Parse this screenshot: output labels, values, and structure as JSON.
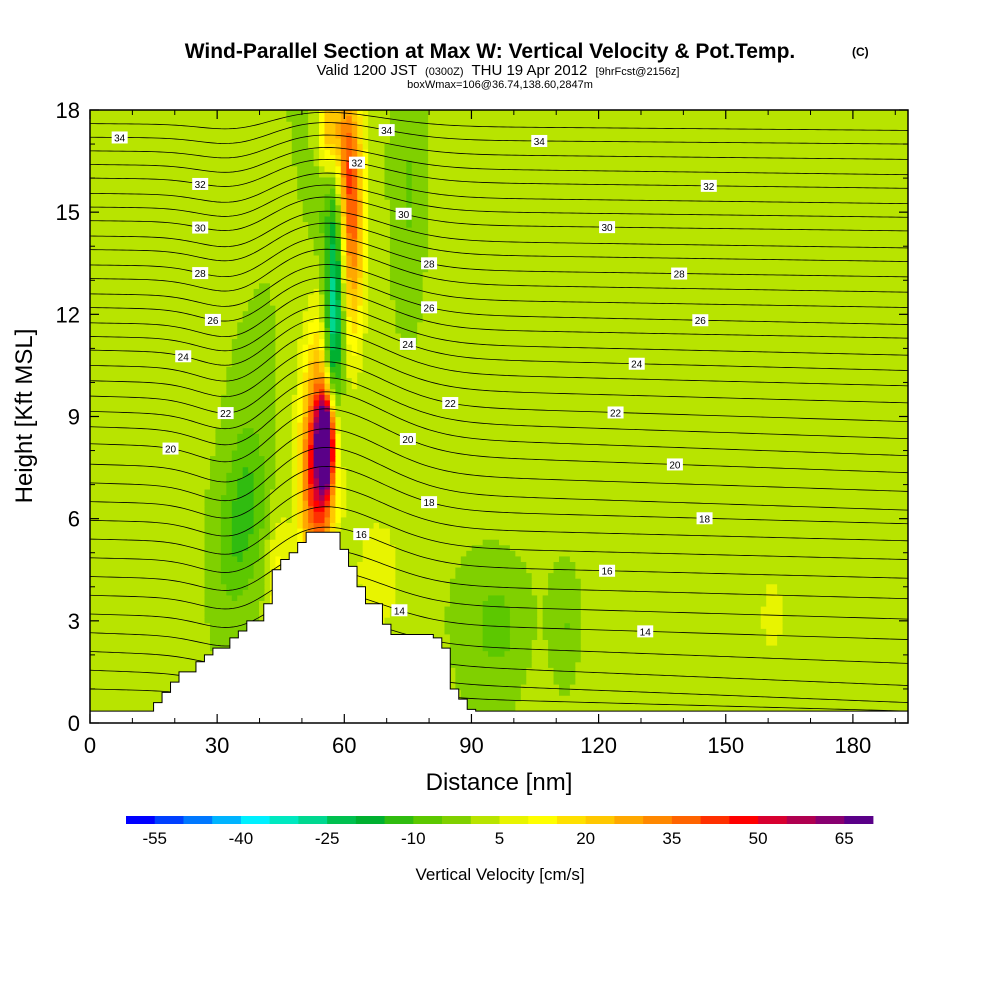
{
  "header": {
    "title": "Wind-Parallel Section at Max W: Vertical Velocity & Pot.Temp.",
    "copyright": "(C)",
    "valid_prefix": "Valid 1200 JST",
    "valid_utc": "(0300Z)",
    "valid_date": "THU 19 Apr 2012",
    "forecast_tag": "[9hrFcst@2156z]",
    "box_info": "boxWmax=106@36.74,138.60,2847m"
  },
  "chart_data": {
    "type": "heatmap",
    "title": "Wind-Parallel Section at Max W: Vertical Velocity & Pot.Temp.",
    "xlabel": "Distance [nm]",
    "ylabel": "Height [Kft MSL]",
    "xlim": [
      0,
      193
    ],
    "ylim": [
      0,
      18
    ],
    "xticks": [
      "0",
      "30",
      "60",
      "90",
      "120",
      "150",
      "180"
    ],
    "yticks": [
      "0",
      "3",
      "6",
      "9",
      "12",
      "15",
      "18"
    ],
    "background_w_cms": 0,
    "colors": {
      "background_green": "#7ed400",
      "colorbar": [
        "#0000ff",
        "#0040ff",
        "#0078ff",
        "#00b4ff",
        "#00f0ff",
        "#00e8c0",
        "#00d890",
        "#00c050",
        "#00b030",
        "#30bc10",
        "#5cc800",
        "#80d000",
        "#b8e400",
        "#e8f400",
        "#ffff00",
        "#ffe000",
        "#ffc800",
        "#ffa800",
        "#ff8800",
        "#ff6400",
        "#ff3000",
        "#ff0000",
        "#d80030",
        "#b00050",
        "#880070",
        "#5a0088"
      ]
    },
    "colorbar": {
      "label": "Vertical Velocity [cm/s]",
      "tick_labels": [
        "-55",
        "-40",
        "-25",
        "-10",
        "5",
        "20",
        "35",
        "50",
        "65"
      ]
    },
    "terrain_profile": {
      "x_nm": [
        0,
        11,
        13,
        15,
        17,
        19,
        21,
        23,
        25,
        27,
        29,
        31,
        33,
        35,
        37,
        39,
        41,
        43,
        45,
        47,
        49,
        51,
        53,
        55,
        57,
        59,
        61,
        63,
        65,
        67,
        69,
        71,
        73,
        75,
        77,
        79,
        81,
        83,
        85,
        87,
        89,
        91,
        193
      ],
      "height_kft": [
        0.35,
        0.35,
        0.35,
        0.6,
        0.9,
        1.2,
        1.5,
        1.5,
        1.8,
        2.0,
        2.2,
        2.2,
        2.5,
        2.7,
        3.0,
        3.0,
        3.5,
        4.5,
        4.8,
        5.0,
        5.3,
        5.6,
        5.6,
        5.6,
        5.6,
        5.1,
        4.6,
        4.0,
        3.5,
        3.5,
        2.9,
        2.6,
        2.6,
        2.6,
        2.6,
        2.6,
        2.5,
        2.2,
        1.0,
        0.7,
        0.4,
        0.35,
        0.35
      ]
    },
    "w_features": [
      {
        "x": 55.5,
        "y": 8.2,
        "sx": 1.3,
        "sy": 0.9,
        "w": 72
      },
      {
        "x": 54.5,
        "y": 8.0,
        "sx": 2.8,
        "sy": 2.6,
        "w": 40
      },
      {
        "x": 52.0,
        "y": 7.0,
        "sx": 2.5,
        "sy": 2.0,
        "w": 18
      },
      {
        "x": 58.0,
        "y": 14.2,
        "sx": 1.6,
        "sy": 3.2,
        "w": -28
      },
      {
        "x": 57.0,
        "y": 11.0,
        "sx": 1.5,
        "sy": 1.6,
        "w": -20
      },
      {
        "x": 60.5,
        "y": 16.5,
        "sx": 2.6,
        "sy": 1.9,
        "w": 36
      },
      {
        "x": 62.0,
        "y": 13.5,
        "sx": 2.0,
        "sy": 2.0,
        "w": 24
      },
      {
        "x": 56.5,
        "y": 17.5,
        "sx": 2.0,
        "sy": 1.0,
        "w": 30
      },
      {
        "x": 37.5,
        "y": 6.8,
        "sx": 3.0,
        "sy": 1.6,
        "w": -10
      },
      {
        "x": 33.5,
        "y": 5.2,
        "sx": 3.2,
        "sy": 1.4,
        "w": -8
      },
      {
        "x": 44.5,
        "y": 3.5,
        "sx": 1.8,
        "sy": 1.8,
        "w": 14
      },
      {
        "x": 68.0,
        "y": 4.4,
        "sx": 4.0,
        "sy": 1.3,
        "w": 9
      },
      {
        "x": 55.0,
        "y": 16.5,
        "sx": 2.0,
        "sy": 2.5,
        "w": -7
      },
      {
        "x": 75.5,
        "y": 15.5,
        "sx": 2.0,
        "sy": 2.0,
        "w": -6
      },
      {
        "x": 96.0,
        "y": 2.8,
        "sx": 5.0,
        "sy": 1.3,
        "w": -8
      },
      {
        "x": 112.0,
        "y": 2.8,
        "sx": 2.5,
        "sy": 1.2,
        "w": -7
      },
      {
        "x": 105.0,
        "y": 11.0,
        "sx": 15.0,
        "sy": 4.5,
        "w": 3
      },
      {
        "x": 125.0,
        "y": 9.5,
        "sx": 8.0,
        "sy": 3.0,
        "w": 3
      },
      {
        "x": 175.0,
        "y": 11.0,
        "sx": 6.0,
        "sy": 2.5,
        "w": 3
      },
      {
        "x": 161.0,
        "y": 3.2,
        "sx": 2.2,
        "sy": 1.0,
        "w": 8
      },
      {
        "x": 120.0,
        "y": 1.5,
        "sx": 20.0,
        "sy": 1.5,
        "w": 2
      },
      {
        "x": 20.0,
        "y": 9.0,
        "sx": 6.0,
        "sy": 5.0,
        "w": 2
      },
      {
        "x": 13.0,
        "y": 14.0,
        "sx": 4.0,
        "sy": 4.0,
        "w": 2
      }
    ],
    "theta_contours": [
      {
        "left": 17.6,
        "right": 17.4,
        "amp": 0.4
      },
      {
        "left": 17.2,
        "right": 17.0,
        "amp": 0.5,
        "label": "34",
        "label_x": [
          7,
          70,
          106
        ]
      },
      {
        "left": 16.8,
        "right": 16.55,
        "amp": 0.55
      },
      {
        "left": 16.4,
        "right": 16.1,
        "amp": 0.6
      },
      {
        "left": 16.0,
        "right": 15.7,
        "amp": 0.65,
        "label": "32",
        "label_x": [
          26,
          63,
          146
        ]
      },
      {
        "left": 15.55,
        "right": 15.25,
        "amp": 0.7
      },
      {
        "left": 15.15,
        "right": 14.85,
        "amp": 0.75
      },
      {
        "left": 14.75,
        "right": 14.45,
        "amp": 0.8,
        "label": "30",
        "label_x": [
          26,
          74,
          122
        ]
      },
      {
        "left": 14.3,
        "right": 13.95,
        "amp": 0.85
      },
      {
        "left": 13.9,
        "right": 13.55,
        "amp": 0.9
      },
      {
        "left": 13.45,
        "right": 13.1,
        "amp": 0.95,
        "label": "28",
        "label_x": [
          26,
          80,
          139
        ]
      },
      {
        "left": 13.05,
        "right": 12.65,
        "amp": 1.0
      },
      {
        "left": 12.6,
        "right": 12.2,
        "amp": 1.0
      },
      {
        "left": 12.2,
        "right": 11.7,
        "amp": 1.05,
        "label": "26",
        "label_x": [
          29,
          80,
          144
        ]
      },
      {
        "left": 11.75,
        "right": 11.3,
        "amp": 1.1
      },
      {
        "left": 11.35,
        "right": 10.8,
        "amp": 1.1
      },
      {
        "left": 10.95,
        "right": 10.35,
        "amp": 1.15,
        "label": "24",
        "label_x": [
          22,
          75,
          129
        ]
      },
      {
        "left": 10.5,
        "right": 9.9,
        "amp": 1.2
      },
      {
        "left": 10.05,
        "right": 9.4,
        "amp": 1.2
      },
      {
        "left": 9.6,
        "right": 8.85,
        "amp": 1.25,
        "label": "22",
        "label_x": [
          32,
          85,
          124
        ]
      },
      {
        "left": 9.15,
        "right": 8.35,
        "amp": 1.25
      },
      {
        "left": 8.7,
        "right": 7.85,
        "amp": 1.3
      },
      {
        "left": 8.2,
        "right": 7.35,
        "amp": 1.3,
        "label": "20",
        "label_x": [
          19,
          75,
          138
        ]
      },
      {
        "left": 7.6,
        "right": 6.8,
        "amp": 1.3
      },
      {
        "left": 7.05,
        "right": 6.25,
        "amp": 1.3
      },
      {
        "left": 6.5,
        "right": 5.85,
        "amp": 1.25,
        "label": "18",
        "label_x": [
          80,
          145
        ]
      },
      {
        "left": 5.95,
        "right": 5.35,
        "amp": 1.2
      },
      {
        "left": 5.4,
        "right": 4.8,
        "amp": 1.15
      },
      {
        "left": 4.85,
        "right": 4.25,
        "amp": 1.1,
        "label": "16",
        "label_x": [
          64,
          122
        ]
      },
      {
        "left": 4.3,
        "right": 3.65,
        "amp": 1.0
      },
      {
        "left": 3.75,
        "right": 3.05,
        "amp": 0.95
      },
      {
        "left": 3.2,
        "right": 2.45,
        "amp": 0.9,
        "label": "14",
        "label_x": [
          73,
          131
        ]
      },
      {
        "left": 2.65,
        "right": 1.75,
        "amp": 0.8
      },
      {
        "left": 2.1,
        "right": 1.1,
        "amp": 0.7
      },
      {
        "left": 1.55,
        "right": 0.6,
        "amp": 0.6
      },
      {
        "left": 1.0,
        "right": 0.35,
        "amp": 0.5
      }
    ]
  }
}
